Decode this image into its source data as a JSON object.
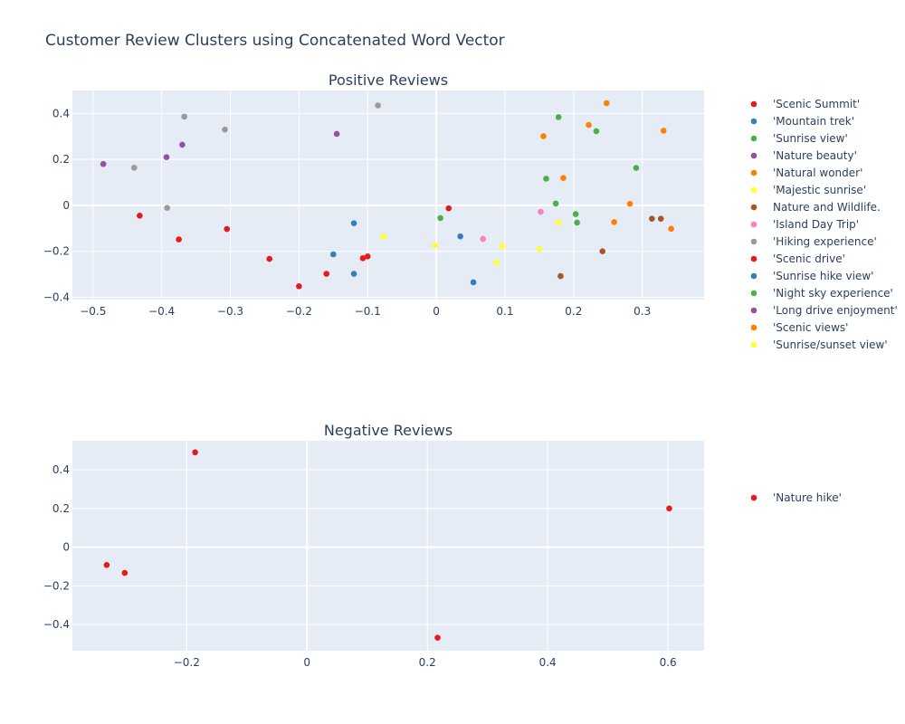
{
  "title": "Customer Review Clusters using Concatenated Word Vector",
  "chart_data": [
    {
      "type": "scatter",
      "title": "Positive Reviews",
      "xlim": [
        -0.53,
        0.39
      ],
      "ylim": [
        -0.41,
        0.5
      ],
      "xticks": [
        -0.5,
        -0.4,
        -0.3,
        -0.2,
        -0.1,
        0,
        0.1,
        0.2,
        0.3
      ],
      "xtick_labels": [
        "−0.5",
        "−0.4",
        "−0.3",
        "−0.2",
        "−0.1",
        "0",
        "0.1",
        "0.2",
        "0.3"
      ],
      "yticks": [
        -0.4,
        -0.2,
        0,
        0.2,
        0.4
      ],
      "ytick_labels": [
        "−0.4",
        "−0.2",
        "0",
        "0.2",
        "0.4"
      ],
      "grid": true,
      "legend": "right",
      "series": [
        {
          "name": "'Scenic Summit'",
          "color": "#e41a1c",
          "points": [
            [
              -0.432,
              -0.045
            ],
            [
              -0.375,
              -0.148
            ],
            [
              -0.305,
              -0.103
            ],
            [
              -0.243,
              -0.233
            ],
            [
              -0.2,
              -0.352
            ],
            [
              -0.16,
              -0.298
            ],
            [
              -0.107,
              -0.23
            ],
            [
              -0.1,
              -0.222
            ],
            [
              0.018,
              -0.013
            ]
          ]
        },
        {
          "name": "'Mountain trek'",
          "color": "#377eb8",
          "points": [
            [
              -0.12,
              -0.078
            ],
            [
              -0.15,
              -0.213
            ],
            [
              -0.12,
              -0.298
            ],
            [
              0.035,
              -0.135
            ],
            [
              0.054,
              -0.335
            ]
          ]
        },
        {
          "name": "'Sunrise view'",
          "color": "#4daf4a",
          "points": [
            [
              0.006,
              -0.055
            ],
            [
              0.178,
              0.384
            ],
            [
              0.233,
              0.323
            ],
            [
              0.16,
              0.116
            ],
            [
              0.174,
              0.008
            ],
            [
              0.203,
              -0.038
            ],
            [
              0.205,
              -0.075
            ],
            [
              0.291,
              0.163
            ]
          ]
        },
        {
          "name": "'Nature beauty'",
          "color": "#984ea3",
          "points": [
            [
              -0.485,
              0.18
            ],
            [
              -0.393,
              0.21
            ],
            [
              -0.37,
              0.264
            ],
            [
              -0.145,
              0.311
            ]
          ]
        },
        {
          "name": "'Natural wonder'",
          "color": "#ff7f00",
          "points": [
            [
              0.156,
              0.301
            ],
            [
              0.185,
              0.119
            ],
            [
              0.222,
              0.35
            ],
            [
              0.248,
              0.445
            ],
            [
              0.259,
              -0.073
            ],
            [
              0.282,
              0.007
            ],
            [
              0.331,
              0.325
            ],
            [
              0.342,
              -0.102
            ]
          ]
        },
        {
          "name": "'Majestic sunrise'",
          "color": "#ffff33",
          "points": [
            [
              -0.077,
              -0.137
            ],
            [
              -0.002,
              -0.175
            ],
            [
              0.096,
              -0.178
            ],
            [
              0.088,
              -0.248
            ],
            [
              0.178,
              -0.075
            ],
            [
              0.15,
              -0.19
            ]
          ]
        },
        {
          "name": "Nature and Wildlife.",
          "color": "#a65628",
          "points": [
            [
              0.181,
              -0.308
            ],
            [
              0.242,
              -0.2
            ],
            [
              0.314,
              -0.058
            ],
            [
              0.327,
              -0.058
            ]
          ]
        },
        {
          "name": "'Island Day Trip'",
          "color": "#f781bf",
          "points": [
            [
              0.068,
              -0.146
            ],
            [
              0.152,
              -0.028
            ]
          ]
        },
        {
          "name": "'Hiking experience'",
          "color": "#999999",
          "points": [
            [
              -0.367,
              0.386
            ],
            [
              -0.44,
              0.164
            ],
            [
              -0.308,
              0.33
            ],
            [
              -0.392,
              -0.011
            ],
            [
              -0.085,
              0.435
            ]
          ]
        },
        {
          "name": "'Scenic drive'",
          "color": "#e41a1c",
          "points": []
        },
        {
          "name": "'Sunrise hike view'",
          "color": "#377eb8",
          "points": []
        },
        {
          "name": "'Night sky experience'",
          "color": "#4daf4a",
          "points": []
        },
        {
          "name": "'Long drive enjoyment'",
          "color": "#984ea3",
          "points": []
        },
        {
          "name": "'Scenic views'",
          "color": "#ff7f00",
          "points": []
        },
        {
          "name": "'Sunrise/sunset view'",
          "color": "#ffff33",
          "points": []
        }
      ]
    },
    {
      "type": "scatter",
      "title": "Negative Reviews",
      "xlim": [
        -0.39,
        0.66
      ],
      "ylim": [
        -0.535,
        0.55
      ],
      "xticks": [
        -0.2,
        0,
        0.2,
        0.4,
        0.6
      ],
      "xtick_labels": [
        "−0.2",
        "0",
        "0.2",
        "0.4",
        "0.6"
      ],
      "yticks": [
        -0.4,
        -0.2,
        0,
        0.2,
        0.4
      ],
      "ytick_labels": [
        "−0.4",
        "−0.2",
        "0",
        "0.2",
        "0.4"
      ],
      "grid": true,
      "legend": "right",
      "series": [
        {
          "name": "'Nature hike'",
          "color": "#e41a1c",
          "points": [
            [
              -0.186,
              0.49
            ],
            [
              -0.333,
              -0.092
            ],
            [
              -0.303,
              -0.133
            ],
            [
              0.217,
              -0.468
            ],
            [
              0.602,
              0.2
            ]
          ]
        }
      ]
    }
  ]
}
